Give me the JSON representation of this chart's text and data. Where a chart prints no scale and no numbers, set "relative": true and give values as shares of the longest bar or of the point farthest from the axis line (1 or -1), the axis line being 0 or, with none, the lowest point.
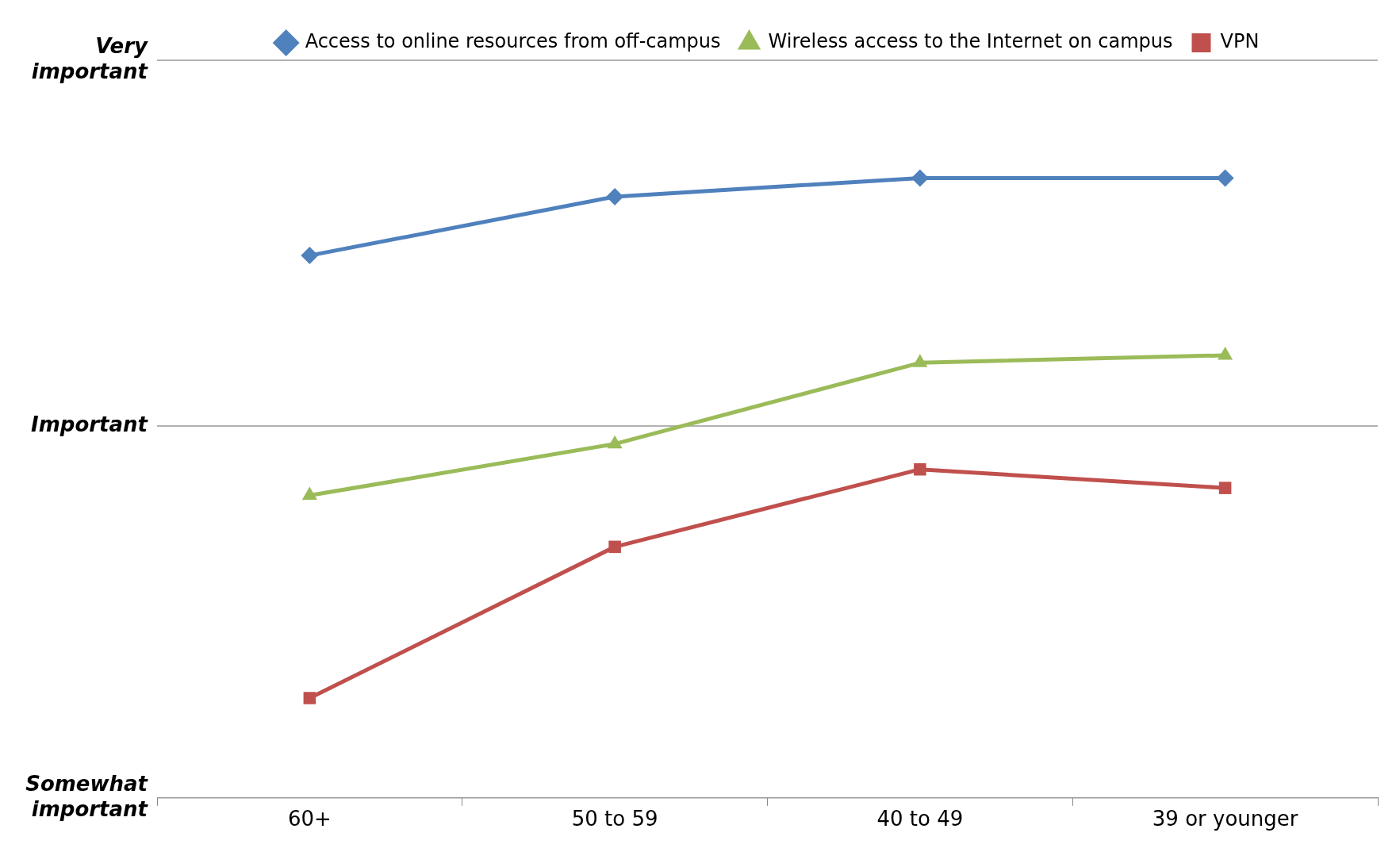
{
  "chart_data": {
    "type": "line",
    "relative": true,
    "categories": [
      "60+",
      "50 to 59",
      "40 to 49",
      "39 or younger"
    ],
    "series": [
      {
        "name": "Access to online resources from off-campus",
        "color": "#4f81bd",
        "marker": "diamond",
        "values": [
          0.875,
          0.97,
          1,
          1
        ]
      },
      {
        "name": "Wireless access to the Internet on campus",
        "color": "#9bbb59",
        "marker": "triangle",
        "values": [
          0.488,
          0.571,
          0.702,
          0.714
        ]
      },
      {
        "name": "VPN",
        "color": "#c0504d",
        "marker": "square",
        "values": [
          0.161,
          0.405,
          0.53,
          0.5
        ]
      }
    ],
    "ref_lines": [
      {
        "axis": "y",
        "value": 0,
        "label": "Somewhat important",
        "color": "#999999"
      },
      {
        "axis": "y",
        "value": 0.6,
        "label": "Important",
        "color": "#999999"
      },
      {
        "axis": "y",
        "value": 1.19,
        "label": "Very important",
        "color": "#999999"
      }
    ],
    "legend": "top",
    "line_style": "solid"
  }
}
